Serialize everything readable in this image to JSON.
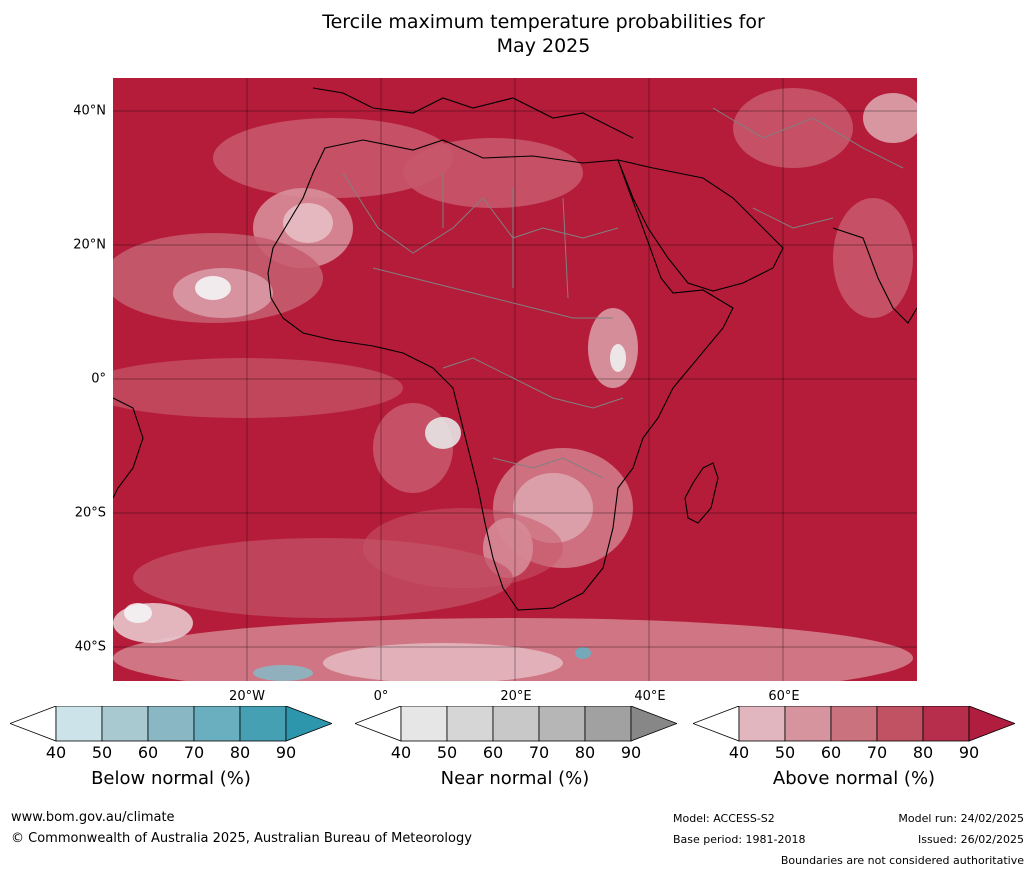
{
  "title_line1": "Tercile maximum temperature probabilities for",
  "title_line2": "May 2025",
  "lat_labels": [
    "40°N",
    "20°N",
    "0°",
    "20°S",
    "40°S"
  ],
  "lon_labels": [
    "20°W",
    "0°",
    "20°E",
    "40°E",
    "60°E"
  ],
  "colorbars": [
    {
      "label": "Below normal (%)",
      "ticks": [
        "40",
        "50",
        "60",
        "70",
        "80",
        "90"
      ],
      "colors": [
        "#ffffff",
        "#cde3ea",
        "#a9c9d1",
        "#8ab7c4",
        "#6aafbf",
        "#45a0b4",
        "#2e96ac"
      ]
    },
    {
      "label": "Near normal (%)",
      "ticks": [
        "40",
        "50",
        "60",
        "70",
        "80",
        "90"
      ],
      "colors": [
        "#ffffff",
        "#e6e6e6",
        "#d6d6d6",
        "#c8c8c8",
        "#b6b6b6",
        "#a1a1a1",
        "#878787"
      ]
    },
    {
      "label": "Above normal (%)",
      "ticks": [
        "40",
        "50",
        "60",
        "70",
        "80",
        "90"
      ],
      "colors": [
        "#ffffff",
        "#e2b6be",
        "#d6949f",
        "#cb727f",
        "#c15264",
        "#b62e4b",
        "#b01d3e"
      ]
    }
  ],
  "footer": {
    "url": "www.bom.gov.au/climate",
    "copyright": "© Commonwealth of Australia 2025, Australian Bureau of Meteorology",
    "model": "Model: ACCESS-S2",
    "base_period": "Base period: 1981-2018",
    "model_run": "Model run: 24/02/2025",
    "issued": "Issued: 26/02/2025",
    "disclaimer": "Boundaries are not considered authoritative"
  }
}
